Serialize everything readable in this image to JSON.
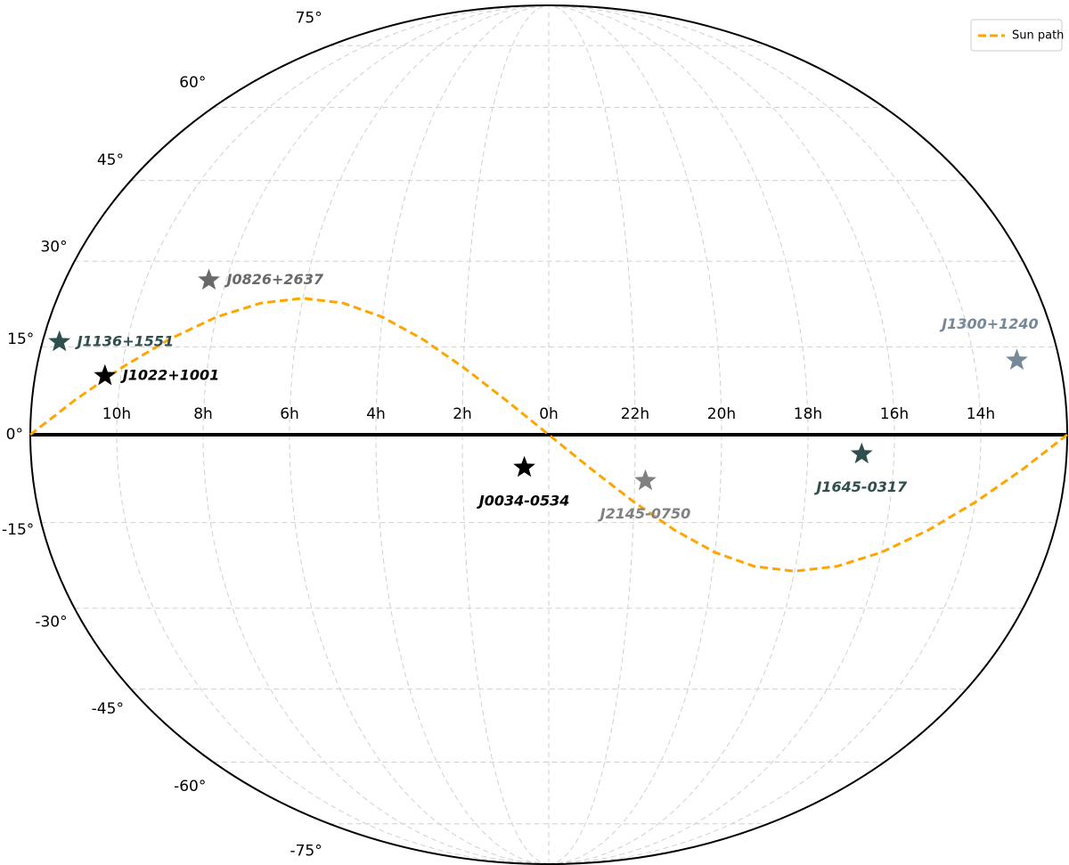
{
  "chart_data": {
    "type": "scatter",
    "projection": "mollweide",
    "grid": true,
    "legend": "upper right",
    "xlim": [
      12,
      -12
    ],
    "ylim": [
      -90,
      90
    ],
    "xticks": [
      {
        "value": 10,
        "label": "10h"
      },
      {
        "value": 8,
        "label": "8h"
      },
      {
        "value": 6,
        "label": "6h"
      },
      {
        "value": 4,
        "label": "4h"
      },
      {
        "value": 2,
        "label": "2h"
      },
      {
        "value": 0,
        "label": "0h"
      },
      {
        "value": 22,
        "label": "22h"
      },
      {
        "value": 20,
        "label": "20h"
      },
      {
        "value": 18,
        "label": "18h"
      },
      {
        "value": 16,
        "label": "16h"
      },
      {
        "value": 14,
        "label": "14h"
      }
    ],
    "yticks": [
      {
        "value": 75,
        "label": "75°"
      },
      {
        "value": 60,
        "label": "60°"
      },
      {
        "value": 45,
        "label": "45°"
      },
      {
        "value": 30,
        "label": "30°"
      },
      {
        "value": 15,
        "label": "15°"
      },
      {
        "value": 0,
        "label": "0°"
      },
      {
        "value": -15,
        "label": "-15°"
      },
      {
        "value": -30,
        "label": "-30°"
      },
      {
        "value": -45,
        "label": "-45°"
      },
      {
        "value": -60,
        "label": "-60°"
      },
      {
        "value": -75,
        "label": "-75°"
      }
    ],
    "series": [
      {
        "name": "Sun path",
        "color": "#ffa500",
        "x": [
          12,
          13,
          14,
          15,
          16,
          17,
          18,
          19,
          20,
          21,
          22,
          23,
          0,
          1,
          2,
          3,
          4,
          5,
          6,
          7,
          8,
          9,
          10,
          11,
          12
        ],
        "values": [
          0,
          -5.91,
          -11.47,
          -16.34,
          -20.15,
          -22.6,
          -23.44,
          -22.6,
          -20.15,
          -16.34,
          -11.47,
          -5.91,
          0,
          5.91,
          11.47,
          16.34,
          20.15,
          22.6,
          23.44,
          22.6,
          20.15,
          16.34,
          11.47,
          5.91,
          0
        ]
      }
    ],
    "points": [
      {
        "name": "J0034-0534",
        "color": "#000000",
        "x": 0.567,
        "y": -5.57
      },
      {
        "name": "J0826+2637",
        "color": "#696969",
        "x": 8.43,
        "y": 26.62
      },
      {
        "name": "J1022+1001",
        "color": "#000000",
        "x": 10.37,
        "y": 10.02
      },
      {
        "name": "J1136+1551",
        "color": "#2f4f4f",
        "x": 11.6,
        "y": 15.85
      },
      {
        "name": "J1300+1240",
        "color": "#778899",
        "x": 13.0,
        "y": 12.67
      },
      {
        "name": "J1645-0317",
        "color": "#2f4f4f",
        "x": 16.75,
        "y": -3.28
      },
      {
        "name": "J2145-0750",
        "color": "#808080",
        "x": 21.75,
        "y": -7.83
      }
    ]
  }
}
